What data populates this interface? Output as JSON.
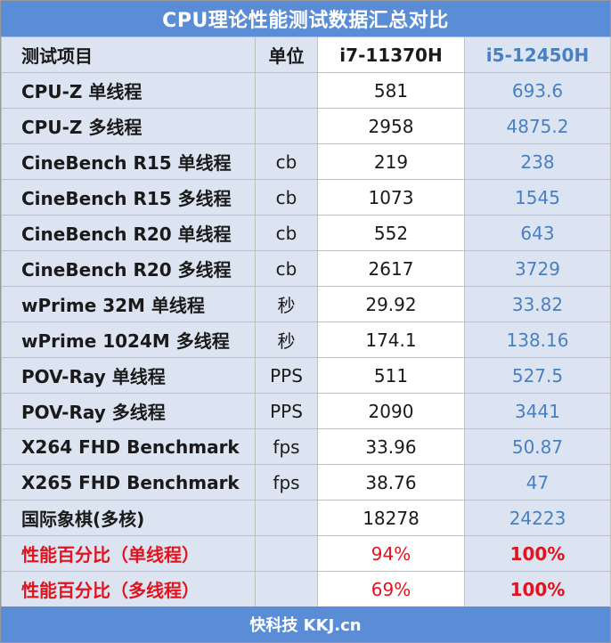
{
  "title": "CPU理论性能测试数据汇总对比",
  "footer": "快科技 KKJ.cn",
  "colors": {
    "header_bar": "#5b8dd6",
    "row_bg": "#dce4f1",
    "second_cpu_text": "#4a7fc1",
    "highlight_red": "#e0141e"
  },
  "table": {
    "headers": {
      "item": "测试项目",
      "unit": "单位",
      "cpu_a": "i7-11370H",
      "cpu_b": "i5-12450H"
    },
    "rows": [
      {
        "item": "CPU-Z 单线程",
        "unit": "",
        "a": "581",
        "b": "693.6"
      },
      {
        "item": "CPU-Z 多线程",
        "unit": "",
        "a": "2958",
        "b": "4875.2"
      },
      {
        "item": "CineBench R15 单线程",
        "unit": "cb",
        "a": "219",
        "b": "238"
      },
      {
        "item": "CineBench R15 多线程",
        "unit": "cb",
        "a": "1073",
        "b": "1545"
      },
      {
        "item": "CineBench R20 单线程",
        "unit": "cb",
        "a": "552",
        "b": "643"
      },
      {
        "item": "CineBench R20 多线程",
        "unit": "cb",
        "a": "2617",
        "b": "3729"
      },
      {
        "item": "wPrime 32M 单线程",
        "unit": "秒",
        "a": "29.92",
        "b": "33.82"
      },
      {
        "item": "wPrime 1024M 多线程",
        "unit": "秒",
        "a": "174.1",
        "b": "138.16"
      },
      {
        "item": "POV-Ray 单线程",
        "unit": "PPS",
        "a": "511",
        "b": "527.5"
      },
      {
        "item": "POV-Ray 多线程",
        "unit": "PPS",
        "a": "2090",
        "b": "3441"
      },
      {
        "item": "X264 FHD Benchmark",
        "unit": "fps",
        "a": "33.96",
        "b": "50.87"
      },
      {
        "item": "X265 FHD Benchmark",
        "unit": "fps",
        "a": "38.76",
        "b": "47"
      },
      {
        "item": "国际象棋(多核)",
        "unit": "",
        "a": "18278",
        "b": "24223"
      },
      {
        "item": "性能百分比（单线程）",
        "unit": "",
        "a": "94%",
        "b": "100%"
      },
      {
        "item": "性能百分比（多线程）",
        "unit": "",
        "a": "69%",
        "b": "100%"
      }
    ]
  }
}
